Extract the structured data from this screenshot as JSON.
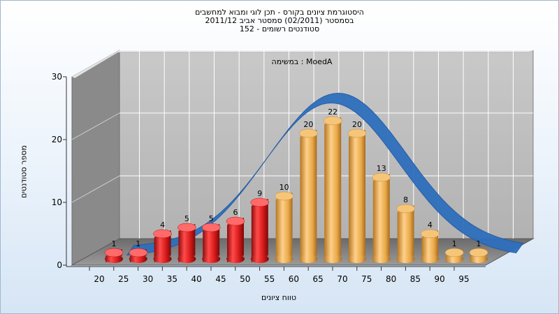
{
  "chart_data": {
    "type": "bar",
    "title_lines": [
      "היסטוגרמת ציונים בקורס - תכן לוגי ומבוא למחשבים",
      "בסמסטר   (02/2011)  סמסטר אביב 2011/12",
      "סטודנטים רשומים - 152"
    ],
    "annotation": "במשימה : MoedA",
    "xlabel": "טווח ציונים",
    "ylabel": "מספר סטודנטים",
    "categories": [
      "20",
      "25",
      "30",
      "35",
      "40",
      "45",
      "50",
      "55",
      "60",
      "65",
      "70",
      "75",
      "80",
      "85",
      "90",
      "95"
    ],
    "values": [
      1,
      1,
      4,
      5,
      5,
      6,
      9,
      10,
      20,
      22,
      20,
      13,
      8,
      4,
      1,
      1
    ],
    "bar_colors": [
      "#d62020",
      "#d62020",
      "#d62020",
      "#d62020",
      "#d62020",
      "#d62020",
      "#d62020",
      "#e8a848",
      "#e8a848",
      "#e8a848",
      "#e8a848",
      "#e8a848",
      "#e8a848",
      "#e8a848",
      "#e8a848",
      "#e8a848"
    ],
    "yticks": [
      0,
      10,
      20,
      30
    ],
    "ylim": [
      0,
      30
    ],
    "grid": true,
    "curve_color": "#2f6fbd",
    "wall_color": "#b9b9b9",
    "side_wall_color": "#8a8a8a"
  }
}
